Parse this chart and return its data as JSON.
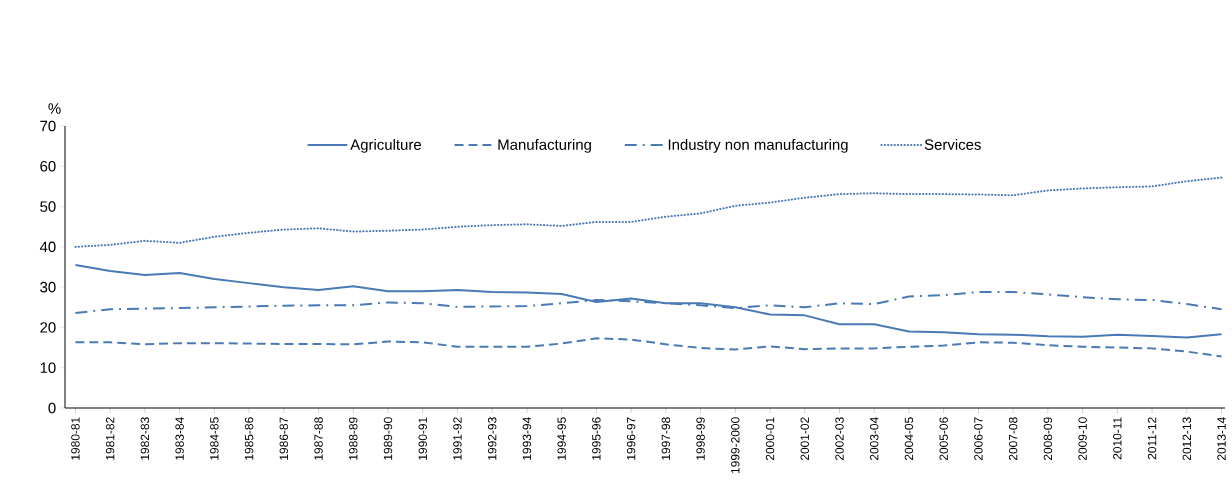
{
  "chart_data": {
    "type": "line",
    "ylabel": "%",
    "ylim": [
      0,
      70
    ],
    "yticks": [
      0,
      10,
      20,
      30,
      40,
      50,
      60,
      70
    ],
    "legend": "top",
    "grid": false,
    "categories": [
      "1980-81",
      "1981-82",
      "1982-83",
      "1983-84",
      "1984-85",
      "1985-86",
      "1986-87",
      "1987-88",
      "1988-89",
      "1989-90",
      "1990-91",
      "1991-92",
      "1992-93",
      "1993-94",
      "1994-95",
      "1995-96",
      "1996-97",
      "1997-98",
      "1998-99",
      "1999-2000",
      "2000-01",
      "2001-02",
      "2002-03",
      "2003-04",
      "2004-05",
      "2005-06",
      "2006-07",
      "2007-08",
      "2008-09",
      "2009-10",
      "2010-11",
      "2011-12",
      "2012-13",
      "2013-14"
    ],
    "series": [
      {
        "name": "Agriculture",
        "color": "#4a7ab5",
        "line_style": "solid",
        "values": [
          35.5,
          34,
          33,
          33.5,
          32,
          31,
          30,
          29.3,
          30.2,
          29,
          29,
          29.3,
          28.8,
          28.7,
          28.3,
          26.3,
          27.2,
          26,
          26,
          25,
          23.2,
          23,
          20.8,
          20.8,
          19,
          18.8,
          18.3,
          18.2,
          17.8,
          17.7,
          18.2,
          17.9,
          17.5,
          18.3
        ]
      },
      {
        "name": "Manufacturing",
        "color": "#4a7ab5",
        "line_style": "dashed",
        "values": [
          16.3,
          16.3,
          15.8,
          16.1,
          16.1,
          16,
          15.9,
          15.9,
          15.8,
          16.5,
          16.3,
          15.2,
          15.2,
          15.2,
          16,
          17.3,
          17,
          15.8,
          14.9,
          14.5,
          15.3,
          14.6,
          14.8,
          14.8,
          15.2,
          15.5,
          16.3,
          16.2,
          15.6,
          15.2,
          15,
          14.8,
          14,
          12.8
        ]
      },
      {
        "name": "Industry non manufacturing",
        "color": "#4a7ab5",
        "line_style": "dashdot",
        "values": [
          23.6,
          24.5,
          24.7,
          24.8,
          25,
          25.2,
          25.4,
          25.5,
          25.5,
          26.2,
          26,
          25.1,
          25.2,
          25.3,
          26,
          26.8,
          26.5,
          26,
          25.5,
          24.8,
          25.5,
          25,
          26,
          25.8,
          27.7,
          28,
          28.8,
          28.8,
          28.2,
          27.5,
          27,
          26.8,
          25.8,
          24.5
        ]
      },
      {
        "name": "Services",
        "color": "#4a7ab5",
        "line_style": "dotted",
        "values": [
          40,
          40.5,
          41.5,
          41,
          42.5,
          43.5,
          44.3,
          44.6,
          43.8,
          44,
          44.3,
          45,
          45.4,
          45.6,
          45.2,
          46.2,
          46.2,
          47.5,
          48.3,
          50.2,
          51,
          52.2,
          53.1,
          53.3,
          53.1,
          53.1,
          53,
          52.8,
          54,
          54.5,
          54.8,
          55,
          56.3,
          57.2
        ]
      }
    ]
  }
}
